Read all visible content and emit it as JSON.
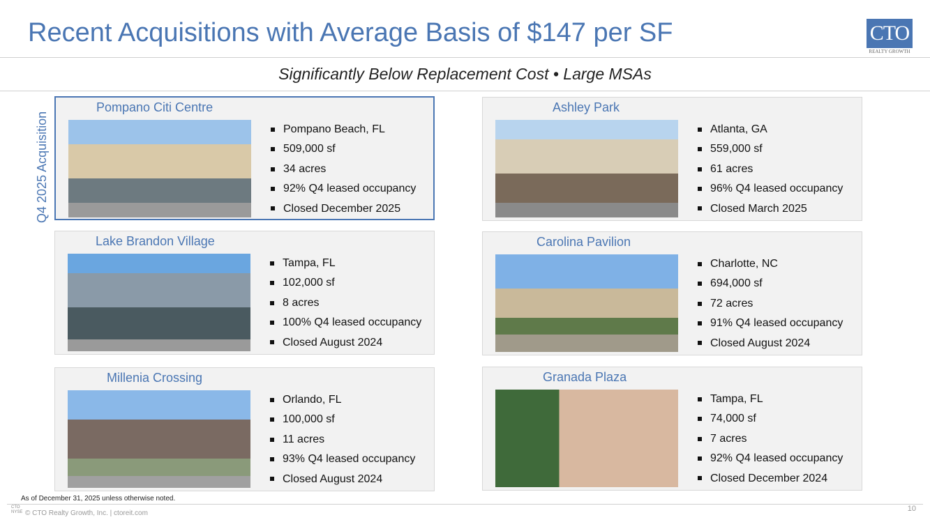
{
  "title": "Recent Acquisitions with Average Basis of $147 per SF",
  "subtitle": "Significantly Below Replacement Cost • Large MSAs",
  "logo": {
    "main": "CTO",
    "sub": "REALTY GROWTH"
  },
  "side_label": "Q4 2025 Acquisition",
  "properties": [
    {
      "name": "Pompano Citi Centre",
      "bullets": [
        "Pompano Beach, FL",
        "509,000 sf",
        "34 acres",
        "92% Q4 leased occupancy",
        "Closed December 2025"
      ]
    },
    {
      "name": "Ashley Park",
      "bullets": [
        "Atlanta, GA",
        "559,000 sf",
        "61 acres",
        "96% Q4 leased occupancy",
        "Closed March 2025"
      ]
    },
    {
      "name": "Lake Brandon Village",
      "bullets": [
        "Tampa, FL",
        "102,000 sf",
        "8 acres",
        "100% Q4 leased occupancy",
        "Closed August 2024"
      ]
    },
    {
      "name": "Carolina Pavilion",
      "bullets": [
        "Charlotte, NC",
        "694,000 sf",
        "72 acres",
        "91% Q4 leased occupancy",
        "Closed August 2024"
      ]
    },
    {
      "name": "Millenia Crossing",
      "bullets": [
        "Orlando, FL",
        "100,000 sf",
        "11 acres",
        "93% Q4 leased occupancy",
        "Closed August 2024"
      ]
    },
    {
      "name": "Granada Plaza",
      "bullets": [
        "Tampa, FL",
        "74,000 sf",
        "7 acres",
        "92% Q4 leased occupancy",
        "Closed December 2024"
      ]
    }
  ],
  "footnote": "As of December 31, 2025 unless otherwise noted.",
  "footer": "© CTO Realty Growth, Inc. | ctoreit.com",
  "nyse": "CTO NYSE",
  "page_number": "10"
}
